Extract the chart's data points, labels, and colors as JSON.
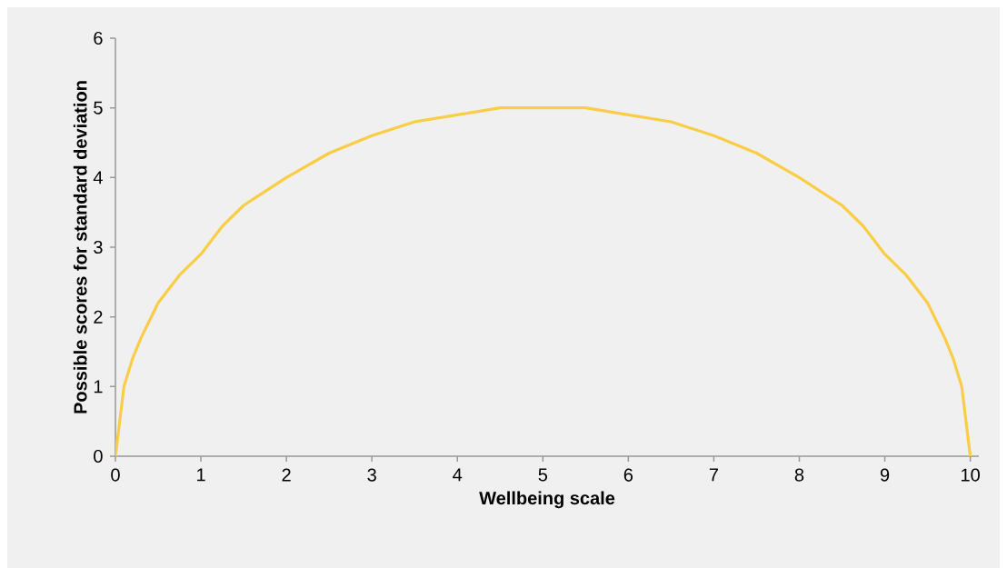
{
  "chart_data": {
    "type": "line",
    "xlabel": "Wellbeing scale",
    "ylabel": "Possible scores for standard deviation",
    "x": [
      0,
      0.1,
      0.2,
      0.3,
      0.4,
      0.5,
      0.75,
      1,
      1.25,
      1.5,
      1.75,
      2,
      2.5,
      3,
      3.5,
      4,
      4.5,
      5,
      5.5,
      6,
      6.5,
      7,
      7.5,
      8,
      8.25,
      8.5,
      8.75,
      9,
      9.25,
      9.5,
      9.6,
      9.7,
      9.8,
      9.9,
      10
    ],
    "series": [
      {
        "color": "#f9cd45",
        "values": [
          0,
          1,
          1.4,
          1.7,
          1.95,
          2.2,
          2.6,
          2.9,
          3.3,
          3.6,
          3.8,
          4,
          4.35,
          4.6,
          4.8,
          4.9,
          5,
          5,
          5,
          4.9,
          4.8,
          4.6,
          4.35,
          4,
          3.8,
          3.6,
          3.3,
          2.9,
          2.6,
          2.2,
          1.95,
          1.7,
          1.4,
          1,
          0
        ]
      }
    ],
    "xlim": [
      0,
      10.1
    ],
    "ylim": [
      0,
      6
    ],
    "xticks": [
      0,
      1,
      2,
      3,
      4,
      5,
      6,
      7,
      8,
      9,
      10
    ],
    "yticks": [
      0,
      1,
      2,
      3,
      4,
      5,
      6
    ],
    "marker": "none",
    "line_style": "solid"
  }
}
